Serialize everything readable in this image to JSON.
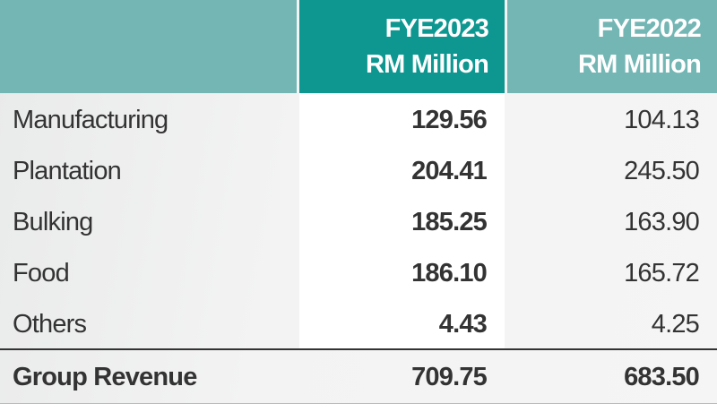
{
  "table": {
    "header": [
      [
        "FYE2023",
        "RM Million"
      ],
      [
        "FYE2022",
        "RM Million"
      ]
    ],
    "rows": [
      [
        "Manufacturing",
        "129.56",
        "104.13"
      ],
      [
        "Plantation",
        "204.41",
        "245.50"
      ],
      [
        "Bulking",
        "185.25",
        "163.90"
      ],
      [
        "Food",
        "186.10",
        "165.72"
      ],
      [
        "Others",
        "4.43",
        "4.25"
      ]
    ],
    "total": [
      "Group Revenue",
      "709.75",
      "683.50"
    ]
  }
}
